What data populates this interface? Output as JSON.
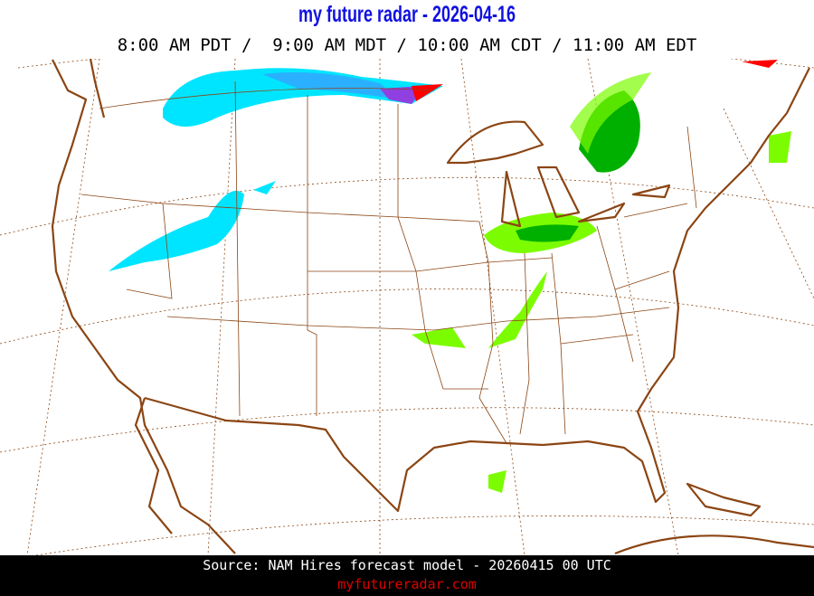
{
  "header": {
    "title": "my future radar - 2026-04-16",
    "times": "8:00 AM PDT /  9:00 AM MDT / 10:00 AM CDT / 11:00 AM EDT"
  },
  "map": {
    "region": "Continental United States",
    "layer": "forecast radar reflectivity",
    "colors": {
      "boundaries": "#8b4513",
      "rain_light": "#7cfc00",
      "rain_moderate": "#00b000",
      "snow_light": "#00e5ff",
      "snow_heavy": "#2090ff",
      "mix": "#9040e0",
      "heavy": "#ff0000"
    }
  },
  "footer": {
    "source": "Source: NAM Hires forecast model - 20260415 00 UTC",
    "site": "myfutureradar.com"
  }
}
